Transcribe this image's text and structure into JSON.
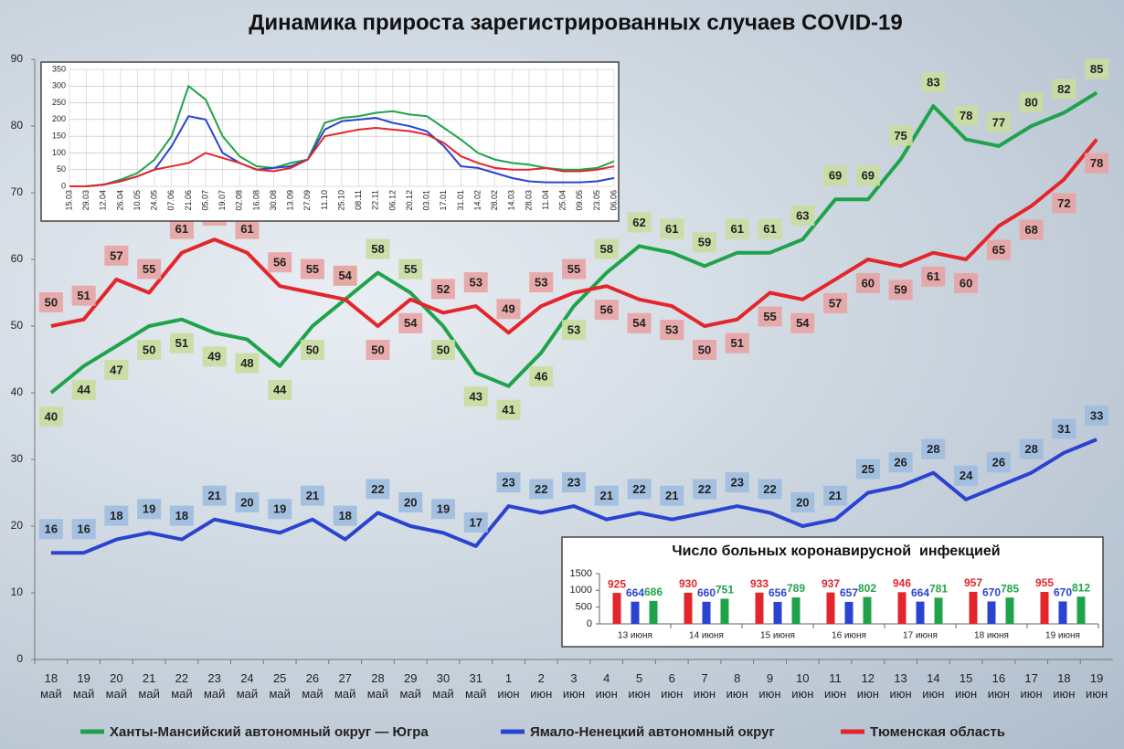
{
  "chart_data": [
    {
      "type": "line",
      "title": "Динамика прироста зарегистрированных случаев COVID-19",
      "categories": [
        "18 май",
        "19 май",
        "20 май",
        "21 май",
        "22 май",
        "23 май",
        "24 май",
        "25 май",
        "26 май",
        "27 май",
        "28 май",
        "29 май",
        "30 май",
        "31 май",
        "1 июн",
        "2 июн",
        "3 июн",
        "4 июн",
        "5 июн",
        "6 июн",
        "7 июн",
        "8 июн",
        "9 июн",
        "10 июн",
        "11 июн",
        "12 июн",
        "13 июн",
        "14 июн",
        "15 июн",
        "16 июн",
        "17 июн",
        "18 июн",
        "19 июн"
      ],
      "series": [
        {
          "name": "Ханты-Мансийский автономный округ — Югра",
          "color": "#1fa34a",
          "values": [
            40,
            44,
            47,
            50,
            51,
            49,
            48,
            44,
            50,
            54,
            58,
            55,
            50,
            43,
            41,
            46,
            53,
            58,
            62,
            61,
            59,
            61,
            61,
            63,
            69,
            69,
            75,
            83,
            78,
            77,
            80,
            82,
            85
          ]
        },
        {
          "name": "Ямало-Ненецкий автономный округ",
          "color": "#2a43d0",
          "values": [
            16,
            16,
            18,
            19,
            18,
            21,
            20,
            19,
            21,
            18,
            22,
            20,
            19,
            17,
            23,
            22,
            23,
            21,
            22,
            21,
            22,
            23,
            22,
            20,
            21,
            25,
            26,
            28,
            24,
            26,
            28,
            31,
            33
          ]
        },
        {
          "name": "Тюменская область",
          "color": "#e3262b",
          "values": [
            50,
            51,
            57,
            55,
            61,
            63,
            61,
            56,
            55,
            54,
            50,
            54,
            52,
            53,
            49,
            53,
            55,
            56,
            54,
            53,
            50,
            51,
            55,
            54,
            57,
            60,
            59,
            61,
            60,
            65,
            68,
            72,
            78
          ]
        }
      ],
      "ylim": [
        0,
        90
      ],
      "yticks": [
        0,
        10,
        20,
        30,
        40,
        50,
        60,
        70,
        80,
        90
      ],
      "grid": false,
      "legend": "bottom"
    },
    {
      "type": "line",
      "categories": [
        "15.03",
        "29.03",
        "12.04",
        "26.04",
        "10.05",
        "24.05",
        "07.06",
        "21.06",
        "05.07",
        "19.07",
        "02.08",
        "16.08",
        "30.08",
        "13.09",
        "27.09",
        "11.10",
        "25.10",
        "08.11",
        "22.11",
        "06.12",
        "20.12",
        "03.01",
        "17.01",
        "31.01",
        "14.02",
        "28.02",
        "14.03",
        "28.03",
        "11.04",
        "25.04",
        "09.05",
        "23.05",
        "06.06"
      ],
      "series": [
        {
          "color": "#1fa34a",
          "values": [
            0,
            0,
            5,
            20,
            40,
            80,
            150,
            300,
            260,
            150,
            90,
            60,
            55,
            70,
            80,
            190,
            205,
            210,
            220,
            225,
            215,
            210,
            175,
            140,
            100,
            80,
            70,
            65,
            55,
            50,
            50,
            55,
            75
          ]
        },
        {
          "color": "#2a43d0",
          "values": [
            0,
            0,
            5,
            15,
            30,
            50,
            120,
            210,
            200,
            100,
            70,
            50,
            55,
            60,
            80,
            170,
            195,
            200,
            205,
            190,
            180,
            165,
            120,
            60,
            55,
            40,
            25,
            15,
            12,
            12,
            12,
            15,
            25
          ]
        },
        {
          "color": "#e3262b",
          "values": [
            0,
            0,
            5,
            15,
            30,
            50,
            60,
            70,
            100,
            85,
            70,
            50,
            45,
            55,
            80,
            150,
            160,
            170,
            175,
            170,
            165,
            155,
            130,
            90,
            70,
            55,
            50,
            50,
            55,
            45,
            45,
            50,
            60
          ]
        }
      ],
      "ylim": [
        0,
        350
      ],
      "yticks": [
        0,
        50,
        100,
        150,
        200,
        250,
        300,
        350
      ],
      "grid": true
    },
    {
      "type": "bar",
      "title": "Число больных коронавирусной  инфекцией",
      "categories": [
        "13 июня",
        "14 июня",
        "15 июня",
        "16 июня",
        "17 июня",
        "18 июня",
        "19 июня"
      ],
      "series": [
        {
          "color": "#e3262b",
          "values": [
            925,
            930,
            933,
            937,
            946,
            957,
            955
          ]
        },
        {
          "color": "#2a43d0",
          "values": [
            664,
            660,
            656,
            657,
            664,
            670,
            670
          ]
        },
        {
          "color": "#1fa34a",
          "values": [
            686,
            751,
            789,
            802,
            781,
            785,
            812
          ]
        }
      ],
      "ylim": [
        0,
        1500
      ],
      "yticks": [
        0,
        500,
        1000,
        1500
      ]
    }
  ]
}
